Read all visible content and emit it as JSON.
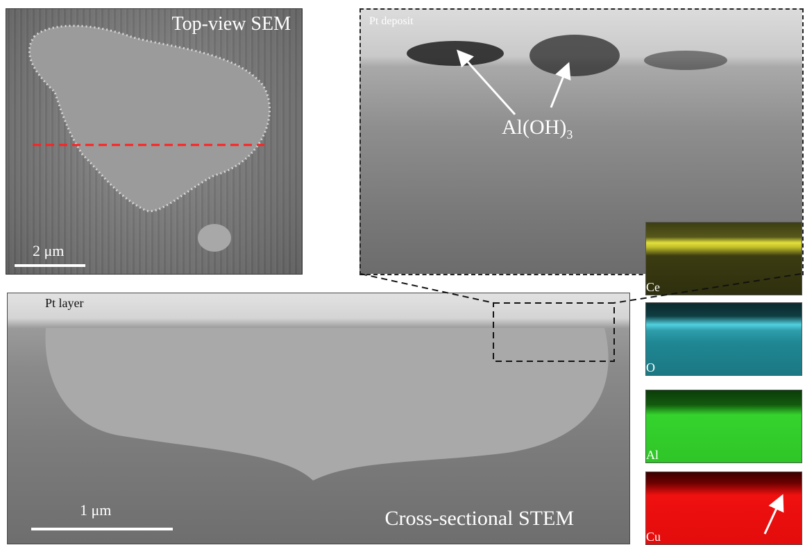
{
  "sem": {
    "title": "Top-view SEM",
    "scale_label": "2 μm"
  },
  "zoom": {
    "deposit_label": "Pt deposit",
    "annotation_text": "Al(OH)",
    "annotation_subscript": "3"
  },
  "stem": {
    "layer_label": "Pt layer",
    "title": "Cross-sectional STEM",
    "scale_label": "1 μm"
  },
  "eds": [
    {
      "label": "Ce",
      "color": "#e2df3c"
    },
    {
      "label": "O",
      "color": "#52d1e0"
    },
    {
      "label": "Al",
      "color": "#35d32d"
    },
    {
      "label": "Cu",
      "color": "#f01010"
    }
  ],
  "colors": {
    "cut_line": "#ff2020",
    "arrow": "#ffffff"
  }
}
